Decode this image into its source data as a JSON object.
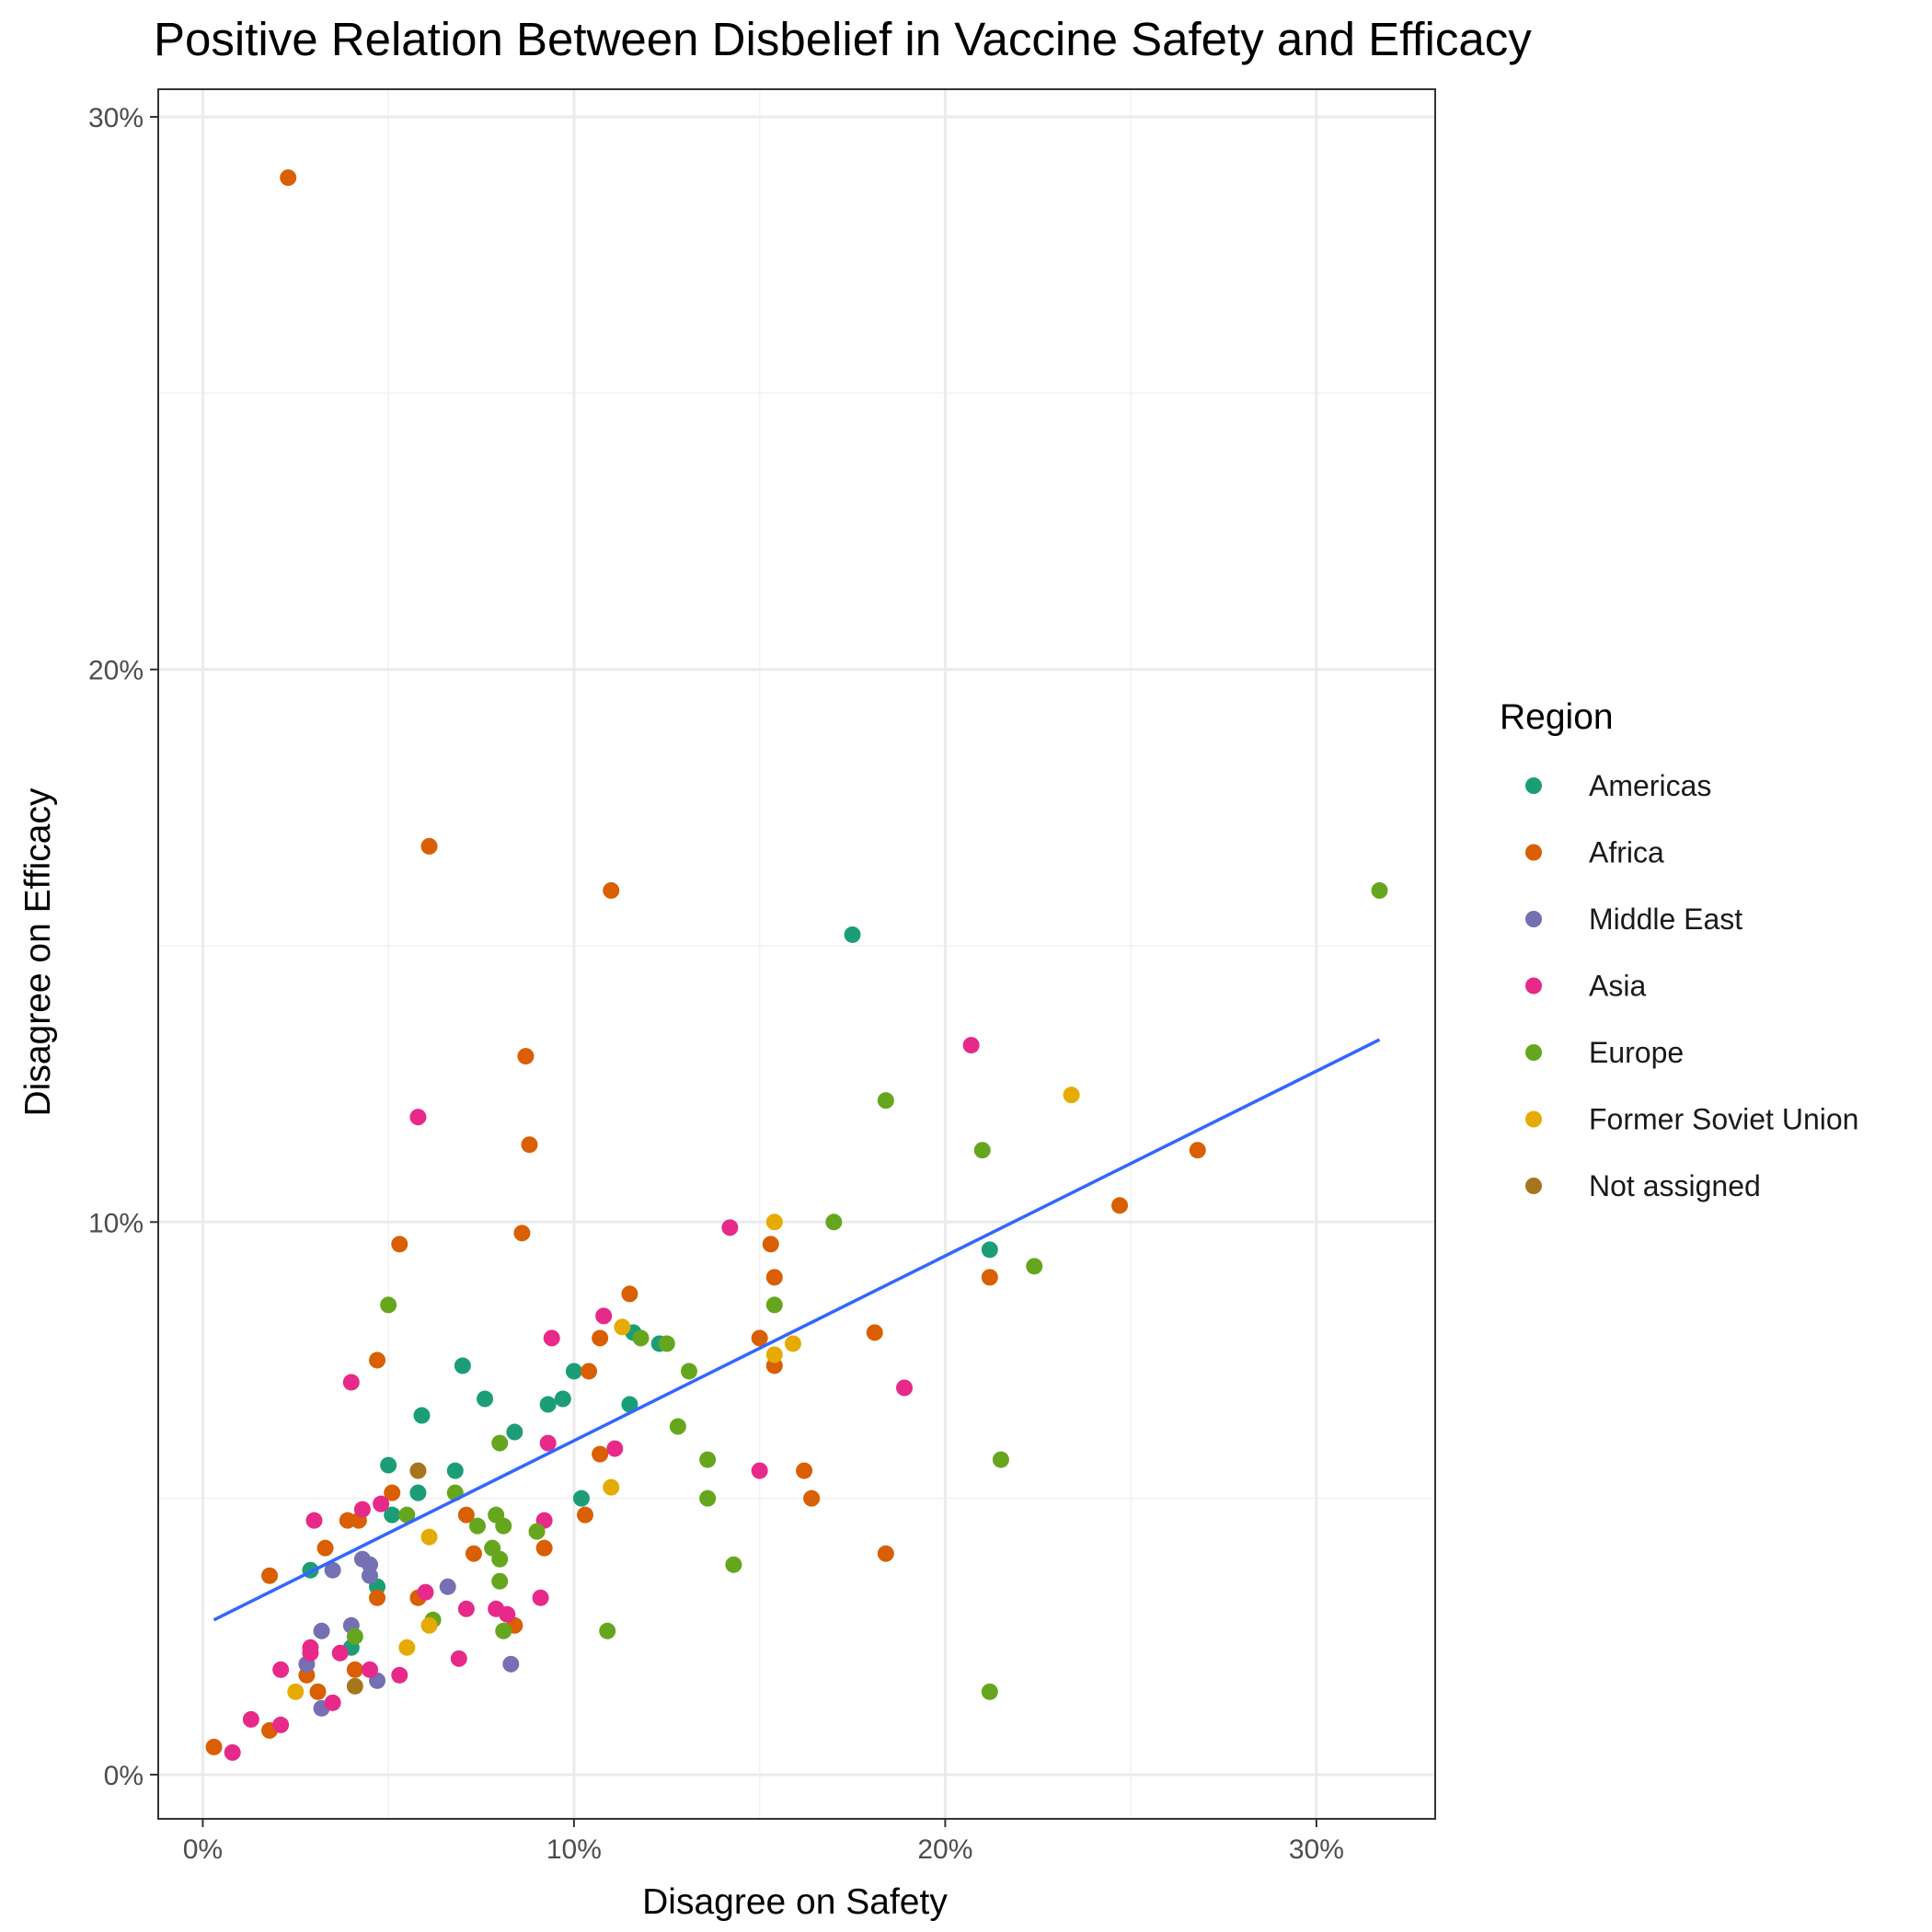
{
  "chart_data": {
    "type": "scatter",
    "title": "Positive Relation Between Disbelief in Vaccine Safety and Efficacy",
    "xlabel": "Disagree on Safety",
    "ylabel": "Disagree on Efficacy",
    "xlim": [
      -1.2,
      33.2
    ],
    "ylim": [
      -0.8,
      30.5
    ],
    "x_ticks": [
      0,
      10,
      20,
      30
    ],
    "x_tick_labels": [
      "0%",
      "10%",
      "20%",
      "30%"
    ],
    "y_ticks": [
      0,
      10,
      20,
      30
    ],
    "y_tick_labels": [
      "0%",
      "10%",
      "20%",
      "30%"
    ],
    "grid": true,
    "legend": {
      "title": "Region",
      "placement": "right"
    },
    "trend_line": {
      "type": "linear",
      "x": [
        0.3,
        31.7
      ],
      "y": [
        2.8,
        13.3
      ],
      "color": "#3366ff"
    },
    "series": [
      {
        "name": "Americas",
        "color": "#1b9e77",
        "points": [
          [
            2.9,
            3.7
          ],
          [
            4.0,
            2.3
          ],
          [
            4.7,
            3.4
          ],
          [
            5.0,
            5.6
          ],
          [
            5.1,
            4.7
          ],
          [
            5.8,
            5.1
          ],
          [
            5.9,
            6.5
          ],
          [
            6.8,
            5.5
          ],
          [
            7.0,
            7.4
          ],
          [
            7.6,
            6.8
          ],
          [
            8.4,
            6.2
          ],
          [
            9.3,
            6.7
          ],
          [
            9.7,
            6.8
          ],
          [
            10.0,
            7.3
          ],
          [
            10.2,
            5.0
          ],
          [
            11.5,
            6.7
          ],
          [
            11.6,
            8.0
          ],
          [
            12.3,
            7.8
          ],
          [
            17.5,
            15.2
          ],
          [
            21.2,
            9.5
          ]
        ]
      },
      {
        "name": "Africa",
        "color": "#d95f02",
        "points": [
          [
            0.3,
            0.5
          ],
          [
            1.8,
            0.8
          ],
          [
            1.8,
            3.6
          ],
          [
            2.3,
            28.9
          ],
          [
            2.8,
            1.8
          ],
          [
            3.1,
            1.5
          ],
          [
            3.3,
            4.1
          ],
          [
            3.9,
            4.6
          ],
          [
            4.1,
            1.9
          ],
          [
            4.2,
            4.6
          ],
          [
            4.7,
            3.2
          ],
          [
            4.7,
            7.5
          ],
          [
            5.1,
            5.1
          ],
          [
            5.3,
            9.6
          ],
          [
            5.8,
            3.2
          ],
          [
            6.1,
            16.8
          ],
          [
            7.1,
            4.7
          ],
          [
            7.3,
            4.0
          ],
          [
            8.4,
            2.7
          ],
          [
            8.6,
            9.8
          ],
          [
            8.7,
            13.0
          ],
          [
            8.8,
            11.4
          ],
          [
            9.2,
            4.1
          ],
          [
            10.3,
            4.7
          ],
          [
            10.4,
            7.3
          ],
          [
            10.7,
            7.9
          ],
          [
            10.7,
            5.8
          ],
          [
            11.0,
            16.0
          ],
          [
            11.5,
            8.7
          ],
          [
            15.0,
            7.9
          ],
          [
            15.3,
            9.6
          ],
          [
            15.4,
            9.0
          ],
          [
            15.4,
            7.4
          ],
          [
            16.2,
            5.5
          ],
          [
            16.4,
            5.0
          ],
          [
            18.1,
            8.0
          ],
          [
            18.4,
            4.0
          ],
          [
            21.2,
            9.0
          ],
          [
            24.7,
            10.3
          ],
          [
            26.8,
            11.3
          ]
        ]
      },
      {
        "name": "Middle East",
        "color": "#7570b3",
        "points": [
          [
            2.8,
            2.0
          ],
          [
            3.2,
            2.6
          ],
          [
            3.2,
            1.2
          ],
          [
            3.5,
            3.7
          ],
          [
            4.0,
            2.7
          ],
          [
            4.3,
            3.9
          ],
          [
            4.5,
            3.8
          ],
          [
            4.5,
            3.6
          ],
          [
            4.7,
            1.7
          ],
          [
            6.6,
            3.4
          ],
          [
            8.3,
            2.0
          ]
        ]
      },
      {
        "name": "Asia",
        "color": "#e7298a",
        "points": [
          [
            0.8,
            0.4
          ],
          [
            1.3,
            1.0
          ],
          [
            2.1,
            1.9
          ],
          [
            2.1,
            0.9
          ],
          [
            2.9,
            2.3
          ],
          [
            2.9,
            2.2
          ],
          [
            3.0,
            4.6
          ],
          [
            3.5,
            1.3
          ],
          [
            3.7,
            2.2
          ],
          [
            4.0,
            7.1
          ],
          [
            4.3,
            4.8
          ],
          [
            4.5,
            1.9
          ],
          [
            4.8,
            4.9
          ],
          [
            5.3,
            1.8
          ],
          [
            5.8,
            11.9
          ],
          [
            6.0,
            3.3
          ],
          [
            6.9,
            2.1
          ],
          [
            7.1,
            3.0
          ],
          [
            7.9,
            3.0
          ],
          [
            8.2,
            2.9
          ],
          [
            9.1,
            3.2
          ],
          [
            9.2,
            4.6
          ],
          [
            9.3,
            6.0
          ],
          [
            9.4,
            7.9
          ],
          [
            10.8,
            8.3
          ],
          [
            11.1,
            5.9
          ],
          [
            14.2,
            9.9
          ],
          [
            15.0,
            5.5
          ],
          [
            18.9,
            7.0
          ],
          [
            20.7,
            13.2
          ]
        ]
      },
      {
        "name": "Europe",
        "color": "#66a61e",
        "points": [
          [
            4.1,
            2.5
          ],
          [
            5.0,
            8.5
          ],
          [
            5.5,
            4.7
          ],
          [
            6.2,
            2.8
          ],
          [
            6.8,
            5.1
          ],
          [
            7.4,
            4.5
          ],
          [
            7.8,
            4.1
          ],
          [
            7.9,
            4.7
          ],
          [
            8.0,
            6.0
          ],
          [
            8.0,
            3.9
          ],
          [
            8.0,
            3.5
          ],
          [
            8.1,
            4.5
          ],
          [
            8.1,
            2.6
          ],
          [
            9.0,
            4.4
          ],
          [
            10.9,
            2.6
          ],
          [
            11.8,
            7.9
          ],
          [
            12.5,
            7.8
          ],
          [
            13.1,
            7.3
          ],
          [
            12.8,
            6.3
          ],
          [
            13.6,
            5.7
          ],
          [
            13.6,
            5.0
          ],
          [
            14.3,
            3.8
          ],
          [
            15.4,
            8.5
          ],
          [
            17.0,
            10.0
          ],
          [
            18.4,
            12.2
          ],
          [
            21.0,
            11.3
          ],
          [
            21.2,
            1.5
          ],
          [
            21.5,
            5.7
          ],
          [
            22.4,
            9.2
          ],
          [
            31.7,
            16.0
          ]
        ]
      },
      {
        "name": "Former Soviet Union",
        "color": "#e6ab02",
        "points": [
          [
            2.5,
            1.5
          ],
          [
            5.5,
            2.3
          ],
          [
            6.1,
            4.3
          ],
          [
            6.1,
            2.7
          ],
          [
            11.0,
            5.2
          ],
          [
            11.3,
            8.1
          ],
          [
            15.4,
            10.0
          ],
          [
            15.4,
            7.6
          ],
          [
            15.9,
            7.8
          ],
          [
            23.4,
            12.3
          ]
        ]
      },
      {
        "name": "Not assigned",
        "color": "#a6761d",
        "points": [
          [
            4.1,
            1.6
          ],
          [
            5.8,
            5.5
          ]
        ]
      }
    ]
  }
}
